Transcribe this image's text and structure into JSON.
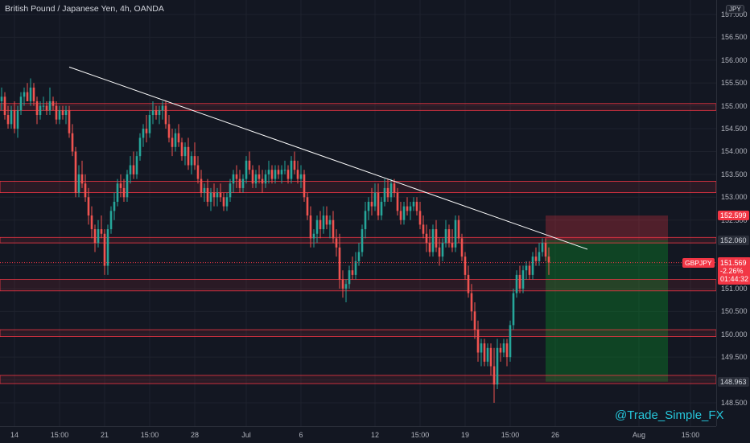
{
  "header": {
    "title": "British Pound / Japanese Yen, 4h, OANDA",
    "currency": "JPY"
  },
  "watermark": "@Trade_Simple_FX",
  "colors": {
    "bg": "#131722",
    "up": "#26a69a",
    "down": "#ef5350",
    "zone": "#f23645",
    "trendline": "#ffffff"
  },
  "price_badges": {
    "stop": "152.599",
    "entry": "152.060",
    "target": "148.963"
  },
  "current": {
    "symbol": "GBPJPY",
    "price": "151.569",
    "change": "-2.26%",
    "countdown": "01:44:32"
  },
  "chart_data": {
    "type": "candlestick",
    "title": "British Pound / Japanese Yen, 4h, OANDA",
    "ylim": [
      148.3,
      157.6
    ],
    "xlim": [
      0,
      223
    ],
    "y_ticks": [
      "148.500",
      "149.000",
      "149.500",
      "150.000",
      "150.500",
      "151.000",
      "151.500",
      "152.000",
      "152.500",
      "153.000",
      "153.500",
      "154.000",
      "154.500",
      "155.000",
      "155.500",
      "156.000",
      "156.500",
      "157.000"
    ],
    "x_ticks": [
      {
        "x": 4,
        "label": "14"
      },
      {
        "x": 18,
        "label": "15:00"
      },
      {
        "x": 32,
        "label": "21"
      },
      {
        "x": 46,
        "label": "15:00"
      },
      {
        "x": 60,
        "label": "28"
      },
      {
        "x": 76,
        "label": "Jul"
      },
      {
        "x": 93,
        "label": "6"
      },
      {
        "x": 116,
        "label": "12"
      },
      {
        "x": 130,
        "label": "15:00"
      },
      {
        "x": 144,
        "label": "19"
      },
      {
        "x": 158,
        "label": "15:00"
      },
      {
        "x": 172,
        "label": "26"
      },
      {
        "x": 198,
        "label": "Aug"
      },
      {
        "x": 214,
        "label": "15:00"
      }
    ],
    "zones": [
      {
        "from": 154.9,
        "to": 155.05
      },
      {
        "from": 153.1,
        "to": 153.35
      },
      {
        "from": 152.0,
        "to": 152.12
      },
      {
        "from": 150.95,
        "to": 151.2
      },
      {
        "from": 149.95,
        "to": 150.1
      },
      {
        "from": 148.92,
        "to": 149.1
      }
    ],
    "trendline": {
      "x1": 21,
      "y1": 155.85,
      "x2": 182,
      "y2": 151.86
    },
    "position": {
      "x_start": 169,
      "x_end": 207,
      "stop": 152.599,
      "entry": 152.06,
      "target": 148.963
    },
    "current_price": 151.569,
    "ohlc": [
      [
        0,
        155.1,
        155.4,
        154.9,
        155.2
      ],
      [
        1,
        155.2,
        155.3,
        154.7,
        154.8
      ],
      [
        2,
        154.8,
        155.0,
        154.5,
        154.6
      ],
      [
        3,
        154.6,
        155.0,
        154.5,
        154.9
      ],
      [
        4,
        154.9,
        155.1,
        154.4,
        154.5
      ],
      [
        5,
        154.5,
        155.0,
        154.3,
        154.9
      ],
      [
        6,
        154.9,
        155.3,
        154.8,
        155.2
      ],
      [
        7,
        155.2,
        155.4,
        155.0,
        155.3
      ],
      [
        8,
        155.3,
        155.5,
        155.1,
        155.1
      ],
      [
        9,
        155.1,
        155.6,
        155.0,
        155.4
      ],
      [
        10,
        155.4,
        155.5,
        155.0,
        155.1
      ],
      [
        11,
        155.1,
        155.2,
        154.6,
        154.8
      ],
      [
        12,
        154.8,
        155.1,
        154.7,
        155.0
      ],
      [
        13,
        155.0,
        155.2,
        154.9,
        155.0
      ],
      [
        14,
        155.0,
        155.1,
        154.8,
        154.9
      ],
      [
        15,
        154.9,
        155.4,
        154.8,
        155.1
      ],
      [
        16,
        155.1,
        155.2,
        154.9,
        155.0
      ],
      [
        17,
        155.0,
        155.1,
        154.6,
        154.7
      ],
      [
        18,
        154.7,
        155.0,
        154.6,
        154.9
      ],
      [
        19,
        154.9,
        155.0,
        154.7,
        154.8
      ],
      [
        20,
        154.8,
        155.0,
        154.6,
        154.9
      ],
      [
        21,
        154.9,
        155.0,
        154.3,
        154.4
      ],
      [
        22,
        154.4,
        154.6,
        153.9,
        154.0
      ],
      [
        23,
        154.0,
        154.1,
        153.0,
        153.1
      ],
      [
        24,
        153.1,
        153.7,
        153.0,
        153.5
      ],
      [
        25,
        153.5,
        153.8,
        153.2,
        153.3
      ],
      [
        26,
        153.3,
        153.5,
        152.9,
        153.0
      ],
      [
        27,
        153.0,
        153.2,
        152.4,
        152.6
      ],
      [
        28,
        152.6,
        152.8,
        152.1,
        152.3
      ],
      [
        29,
        152.3,
        152.4,
        151.8,
        152.0
      ],
      [
        30,
        152.0,
        152.5,
        151.9,
        152.3
      ],
      [
        31,
        152.3,
        152.6,
        152.1,
        152.2
      ],
      [
        32,
        152.2,
        152.3,
        151.3,
        151.5
      ],
      [
        33,
        151.5,
        152.4,
        151.3,
        152.3
      ],
      [
        34,
        152.3,
        152.8,
        152.2,
        152.7
      ],
      [
        35,
        152.7,
        153.1,
        152.5,
        152.9
      ],
      [
        36,
        152.9,
        153.4,
        152.8,
        153.3
      ],
      [
        37,
        153.3,
        153.5,
        153.0,
        153.2
      ],
      [
        38,
        153.2,
        153.4,
        152.9,
        153.0
      ],
      [
        39,
        153.0,
        153.6,
        152.9,
        153.5
      ],
      [
        40,
        153.5,
        153.9,
        153.3,
        153.7
      ],
      [
        41,
        153.7,
        154.0,
        153.4,
        153.5
      ],
      [
        42,
        153.5,
        154.0,
        153.4,
        153.9
      ],
      [
        43,
        153.9,
        154.4,
        153.8,
        154.3
      ],
      [
        44,
        154.3,
        154.6,
        154.1,
        154.5
      ],
      [
        45,
        154.5,
        154.8,
        154.2,
        154.4
      ],
      [
        46,
        154.4,
        154.9,
        154.3,
        154.8
      ],
      [
        47,
        154.8,
        155.1,
        154.6,
        154.9
      ],
      [
        48,
        154.9,
        155.0,
        154.7,
        154.8
      ],
      [
        49,
        154.8,
        155.0,
        154.6,
        154.9
      ],
      [
        50,
        154.9,
        155.1,
        154.7,
        155.0
      ],
      [
        51,
        155.0,
        155.1,
        154.5,
        154.6
      ],
      [
        52,
        154.6,
        154.8,
        154.2,
        154.3
      ],
      [
        53,
        154.3,
        154.5,
        153.9,
        154.1
      ],
      [
        54,
        154.1,
        154.5,
        154.0,
        154.4
      ],
      [
        55,
        154.4,
        154.6,
        154.1,
        154.2
      ],
      [
        56,
        154.2,
        154.3,
        153.8,
        153.9
      ],
      [
        57,
        153.9,
        154.2,
        153.7,
        154.1
      ],
      [
        58,
        154.1,
        154.3,
        153.6,
        153.7
      ],
      [
        59,
        153.7,
        154.0,
        153.5,
        153.9
      ],
      [
        60,
        153.9,
        154.2,
        153.6,
        153.7
      ],
      [
        61,
        153.7,
        153.9,
        153.3,
        153.4
      ],
      [
        62,
        153.4,
        153.6,
        153.0,
        153.1
      ],
      [
        63,
        153.1,
        153.3,
        152.9,
        153.2
      ],
      [
        64,
        153.2,
        153.4,
        152.8,
        152.9
      ],
      [
        65,
        152.9,
        153.2,
        152.7,
        153.1
      ],
      [
        66,
        153.1,
        153.3,
        152.8,
        153.0
      ],
      [
        67,
        153.0,
        153.2,
        152.8,
        153.1
      ],
      [
        68,
        153.1,
        153.3,
        152.9,
        153.0
      ],
      [
        69,
        153.0,
        153.1,
        152.7,
        152.8
      ],
      [
        70,
        152.8,
        153.1,
        152.7,
        153.0
      ],
      [
        71,
        153.0,
        153.4,
        152.9,
        153.3
      ],
      [
        72,
        153.3,
        153.6,
        153.1,
        153.5
      ],
      [
        73,
        153.5,
        153.7,
        153.2,
        153.4
      ],
      [
        74,
        153.4,
        153.6,
        153.1,
        153.2
      ],
      [
        75,
        153.2,
        153.5,
        153.1,
        153.4
      ],
      [
        76,
        153.4,
        153.9,
        153.3,
        153.8
      ],
      [
        77,
        153.8,
        154.0,
        153.5,
        153.6
      ],
      [
        78,
        153.6,
        153.7,
        153.2,
        153.3
      ],
      [
        79,
        153.3,
        153.6,
        153.2,
        153.5
      ],
      [
        80,
        153.5,
        153.7,
        153.3,
        153.4
      ],
      [
        81,
        153.4,
        153.6,
        153.1,
        153.3
      ],
      [
        82,
        153.3,
        153.6,
        153.2,
        153.5
      ],
      [
        83,
        153.5,
        153.8,
        153.3,
        153.6
      ],
      [
        84,
        153.6,
        153.7,
        153.3,
        153.4
      ],
      [
        85,
        153.4,
        153.7,
        153.3,
        153.6
      ],
      [
        86,
        153.6,
        153.7,
        153.4,
        153.5
      ],
      [
        87,
        153.5,
        153.7,
        153.3,
        153.6
      ],
      [
        88,
        153.6,
        153.8,
        153.5,
        153.6
      ],
      [
        89,
        153.6,
        153.7,
        153.3,
        153.4
      ],
      [
        90,
        153.4,
        153.9,
        153.3,
        153.8
      ],
      [
        91,
        153.8,
        154.0,
        153.5,
        153.6
      ],
      [
        92,
        153.6,
        153.8,
        153.3,
        153.4
      ],
      [
        93,
        153.4,
        153.7,
        153.2,
        153.5
      ],
      [
        94,
        153.5,
        153.6,
        152.9,
        153.0
      ],
      [
        95,
        153.0,
        153.1,
        152.5,
        152.6
      ],
      [
        96,
        152.6,
        152.8,
        151.9,
        152.1
      ],
      [
        97,
        152.1,
        152.3,
        151.9,
        152.2
      ],
      [
        98,
        152.2,
        152.6,
        152.0,
        152.5
      ],
      [
        99,
        152.5,
        152.7,
        152.1,
        152.3
      ],
      [
        100,
        152.3,
        152.8,
        152.2,
        152.6
      ],
      [
        101,
        152.6,
        152.8,
        152.3,
        152.4
      ],
      [
        102,
        152.4,
        152.6,
        152.1,
        152.5
      ],
      [
        103,
        152.5,
        152.7,
        152.0,
        152.1
      ],
      [
        104,
        152.1,
        152.3,
        151.7,
        151.9
      ],
      [
        105,
        151.9,
        152.2,
        151.0,
        151.2
      ],
      [
        106,
        151.2,
        151.4,
        150.8,
        151.0
      ],
      [
        107,
        151.0,
        151.2,
        150.7,
        151.1
      ],
      [
        108,
        151.1,
        151.5,
        151.0,
        151.4
      ],
      [
        109,
        151.4,
        151.7,
        151.2,
        151.3
      ],
      [
        110,
        151.3,
        151.8,
        151.2,
        151.6
      ],
      [
        111,
        151.6,
        152.0,
        151.5,
        151.8
      ],
      [
        112,
        151.8,
        152.4,
        151.7,
        152.3
      ],
      [
        113,
        152.3,
        152.9,
        152.1,
        152.7
      ],
      [
        114,
        152.7,
        153.0,
        152.5,
        152.9
      ],
      [
        115,
        152.9,
        153.2,
        152.6,
        152.8
      ],
      [
        116,
        152.8,
        153.3,
        152.7,
        153.1
      ],
      [
        117,
        153.1,
        153.3,
        152.5,
        152.6
      ],
      [
        118,
        152.6,
        153.0,
        152.5,
        152.9
      ],
      [
        119,
        152.9,
        153.4,
        152.8,
        153.2
      ],
      [
        120,
        153.2,
        153.4,
        152.9,
        153.0
      ],
      [
        121,
        153.0,
        153.4,
        152.9,
        153.3
      ],
      [
        122,
        153.3,
        153.4,
        153.0,
        153.1
      ],
      [
        123,
        153.1,
        153.2,
        152.6,
        152.7
      ],
      [
        124,
        152.7,
        152.9,
        152.4,
        152.5
      ],
      [
        125,
        152.5,
        152.9,
        152.4,
        152.8
      ],
      [
        126,
        152.8,
        153.0,
        152.6,
        152.7
      ],
      [
        127,
        152.7,
        152.9,
        152.5,
        152.8
      ],
      [
        128,
        152.8,
        153.0,
        152.7,
        152.9
      ],
      [
        129,
        152.9,
        153.0,
        152.6,
        152.7
      ],
      [
        130,
        152.7,
        152.9,
        152.3,
        152.4
      ],
      [
        131,
        152.4,
        152.6,
        152.1,
        152.2
      ],
      [
        132,
        152.2,
        152.4,
        151.8,
        152.0
      ],
      [
        133,
        152.0,
        152.3,
        151.7,
        151.8
      ],
      [
        134,
        151.8,
        152.4,
        151.7,
        152.3
      ],
      [
        135,
        152.3,
        152.5,
        151.8,
        151.9
      ],
      [
        136,
        151.9,
        152.1,
        151.5,
        151.7
      ],
      [
        137,
        151.7,
        152.1,
        151.6,
        152.0
      ],
      [
        138,
        152.0,
        152.5,
        151.9,
        152.3
      ],
      [
        139,
        152.3,
        152.4,
        151.9,
        152.0
      ],
      [
        140,
        152.0,
        152.3,
        151.8,
        151.9
      ],
      [
        141,
        151.9,
        152.6,
        151.8,
        152.5
      ],
      [
        142,
        152.5,
        152.6,
        152.0,
        152.1
      ],
      [
        143,
        152.1,
        152.2,
        151.6,
        151.7
      ],
      [
        144,
        151.7,
        151.8,
        151.2,
        151.3
      ],
      [
        145,
        151.3,
        151.5,
        150.8,
        150.9
      ],
      [
        146,
        150.9,
        151.1,
        150.3,
        150.5
      ],
      [
        147,
        150.5,
        150.7,
        149.9,
        150.1
      ],
      [
        148,
        150.1,
        150.3,
        149.4,
        149.6
      ],
      [
        149,
        149.6,
        149.9,
        149.3,
        149.8
      ],
      [
        150,
        149.8,
        149.9,
        149.3,
        149.4
      ],
      [
        151,
        149.4,
        149.8,
        149.3,
        149.7
      ],
      [
        152,
        149.7,
        149.8,
        149.1,
        149.3
      ],
      [
        153,
        149.3,
        149.7,
        148.5,
        148.9
      ],
      [
        154,
        148.9,
        149.9,
        148.8,
        149.7
      ],
      [
        155,
        149.7,
        149.8,
        149.4,
        149.6
      ],
      [
        156,
        149.6,
        149.9,
        149.5,
        149.8
      ],
      [
        157,
        149.8,
        149.9,
        149.3,
        149.5
      ],
      [
        158,
        149.5,
        150.3,
        149.4,
        150.2
      ],
      [
        159,
        150.2,
        151.0,
        150.1,
        150.9
      ],
      [
        160,
        150.9,
        151.4,
        150.8,
        151.3
      ],
      [
        161,
        151.3,
        151.5,
        150.9,
        151.0
      ],
      [
        162,
        151.0,
        151.5,
        150.9,
        151.4
      ],
      [
        163,
        151.4,
        151.6,
        151.2,
        151.5
      ],
      [
        164,
        151.5,
        151.6,
        151.2,
        151.3
      ],
      [
        165,
        151.3,
        151.8,
        151.2,
        151.7
      ],
      [
        166,
        151.7,
        151.9,
        151.5,
        151.6
      ],
      [
        167,
        151.6,
        152.0,
        151.5,
        151.8
      ],
      [
        168,
        151.8,
        152.1,
        151.7,
        152.0
      ],
      [
        169,
        152.0,
        152.1,
        151.6,
        151.7
      ],
      [
        170,
        151.7,
        151.9,
        151.3,
        151.57
      ]
    ]
  }
}
